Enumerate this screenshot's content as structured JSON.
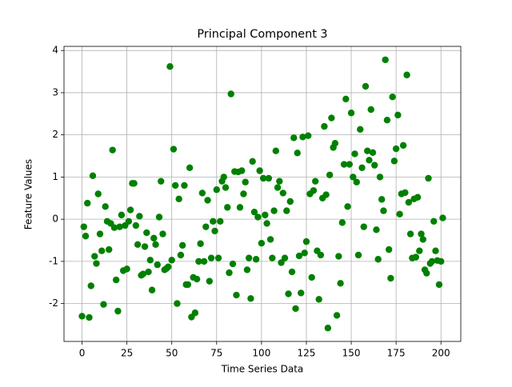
{
  "chart_data": {
    "type": "scatter",
    "title": "Principal Component 3",
    "x_label": "Time Series Data",
    "y_label": "Feature Values",
    "x": [
      0,
      1,
      2,
      3,
      4,
      5,
      6,
      7,
      8,
      9,
      10,
      11,
      12,
      13,
      14,
      15,
      16,
      17,
      18,
      19,
      20,
      21,
      22,
      23,
      24,
      25,
      26,
      27,
      28,
      29,
      30,
      31,
      32,
      33,
      34,
      35,
      36,
      37,
      38,
      39,
      40,
      41,
      42,
      43,
      44,
      45,
      46,
      47,
      48,
      49,
      50,
      51,
      52,
      53,
      54,
      55,
      56,
      57,
      58,
      59,
      60,
      61,
      62,
      63,
      64,
      65,
      66,
      67,
      68,
      69,
      70,
      71,
      72,
      73,
      74,
      75,
      76,
      77,
      78,
      79,
      80,
      81,
      82,
      83,
      84,
      85,
      86,
      87,
      88,
      89,
      90,
      91,
      92,
      93,
      94,
      95,
      96,
      97,
      98,
      99,
      100,
      101,
      102,
      103,
      104,
      105,
      106,
      107,
      108,
      109,
      110,
      111,
      112,
      113,
      114,
      115,
      116,
      117,
      118,
      119,
      120,
      121,
      122,
      123,
      124,
      125,
      126,
      127,
      128,
      129,
      130,
      131,
      132,
      133,
      134,
      135,
      136,
      137,
      138,
      139,
      140,
      141,
      142,
      143,
      144,
      145,
      146,
      147,
      148,
      149,
      150,
      151,
      152,
      153,
      154,
      155,
      156,
      157,
      158,
      159,
      160,
      161,
      162,
      163,
      164,
      165,
      166,
      167,
      168,
      169,
      170,
      171,
      172,
      173,
      174,
      175,
      176,
      177,
      178,
      179,
      180,
      181,
      182,
      183,
      184,
      185,
      186,
      187,
      188,
      189,
      190,
      191,
      192,
      193,
      194,
      195,
      196,
      197,
      198,
      199,
      200,
      201
    ],
    "values": [
      -2.3,
      -0.18,
      -0.4,
      0.38,
      -2.33,
      -1.58,
      1.03,
      -0.88,
      -1.05,
      0.6,
      -0.35,
      -0.75,
      -2.02,
      0.3,
      -0.05,
      -0.72,
      -0.1,
      1.64,
      -0.2,
      -1.44,
      -2.18,
      -0.18,
      0.1,
      -1.22,
      -0.15,
      -1.18,
      -0.05,
      0.22,
      0.85,
      0.85,
      -0.15,
      -0.6,
      0.07,
      -1.33,
      -1.3,
      -0.65,
      -0.32,
      -1.25,
      -0.97,
      -1.68,
      -0.45,
      -0.6,
      -1.08,
      0.05,
      0.9,
      -0.35,
      -1.2,
      -1.17,
      -1.13,
      3.62,
      -0.97,
      1.66,
      0.8,
      -2.0,
      0.48,
      -0.85,
      -0.62,
      0.8,
      -1.55,
      -1.55,
      1.22,
      -2.32,
      -1.38,
      -2.22,
      -1.42,
      -1.0,
      -0.58,
      0.62,
      -1.0,
      -0.18,
      0.45,
      -1.47,
      -0.92,
      -0.05,
      -0.28,
      0.7,
      -0.92,
      -0.05,
      0.9,
      1.0,
      0.75,
      0.28,
      -1.27,
      2.97,
      -1.06,
      1.13,
      -1.8,
      1.12,
      0.28,
      1.15,
      0.6,
      0.88,
      -1.2,
      -0.92,
      -1.88,
      1.37,
      0.17,
      -0.95,
      0.05,
      1.15,
      -0.57,
      0.97,
      0.1,
      -0.1,
      0.97,
      -0.48,
      -0.92,
      0.2,
      1.62,
      0.75,
      0.9,
      -1.03,
      0.62,
      -0.92,
      0.2,
      -1.77,
      0.42,
      -1.25,
      1.93,
      -2.12,
      1.57,
      -0.87,
      -1.75,
      1.95,
      -0.8,
      -0.53,
      1.98,
      0.6,
      -1.38,
      0.68,
      0.9,
      -0.75,
      -1.9,
      -0.85,
      0.5,
      2.2,
      0.58,
      -2.58,
      1.05,
      2.4,
      1.7,
      1.8,
      -2.28,
      -0.88,
      -1.52,
      -0.08,
      1.3,
      2.85,
      0.3,
      1.3,
      2.52,
      1.0,
      1.55,
      0.88,
      -0.85,
      2.13,
      1.22,
      -0.18,
      3.15,
      1.62,
      1.4,
      2.6,
      1.58,
      1.28,
      -0.25,
      -0.95,
      1.0,
      0.47,
      0.2,
      3.78,
      2.35,
      -0.72,
      -1.4,
      2.9,
      1.38,
      1.67,
      2.47,
      0.12,
      0.6,
      1.75,
      0.63,
      3.42,
      0.4,
      -0.35,
      -0.92,
      0.48,
      -0.9,
      0.52,
      -0.75,
      -0.35,
      -0.48,
      -1.2,
      -1.28,
      0.97,
      -1.05,
      -1.0,
      -0.05,
      -0.75,
      -0.98,
      -1.55,
      -1.0,
      0.03
    ],
    "color": "#008000",
    "xlim": [
      -10.05,
      211.05
    ],
    "ylim": [
      -2.898,
      4.098
    ],
    "xticks": [
      0,
      25,
      50,
      75,
      100,
      125,
      150,
      175,
      200
    ],
    "yticks": [
      -2,
      -1,
      0,
      1,
      2,
      3,
      4
    ],
    "grid": true
  }
}
